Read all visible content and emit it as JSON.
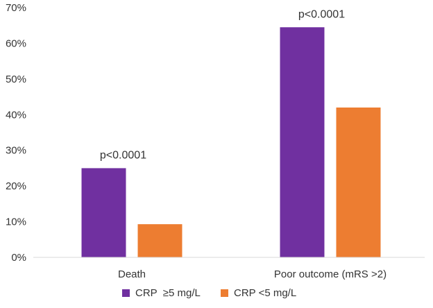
{
  "chart_data": {
    "type": "bar",
    "title": "",
    "xlabel": "",
    "ylabel": "",
    "categories": [
      "Death",
      "Poor outcome (mRS >2)"
    ],
    "series": [
      {
        "name": "CRP  ≥5 mg/L",
        "color": "#7030A0",
        "values": [
          25,
          64.5
        ]
      },
      {
        "name": "CRP <5 mg/L",
        "color": "#ED7D31",
        "values": [
          9.3,
          42
        ]
      }
    ],
    "ylim": [
      0,
      70
    ],
    "yticks": [
      0,
      10,
      20,
      30,
      40,
      50,
      60,
      70
    ],
    "ytick_labels": [
      "0%",
      "10%",
      "20%",
      "30%",
      "40%",
      "50%",
      "60%",
      "70%"
    ],
    "grid": false,
    "legend": "bottom",
    "annotations": [
      "p<0.0001",
      "p<0.0001"
    ]
  }
}
